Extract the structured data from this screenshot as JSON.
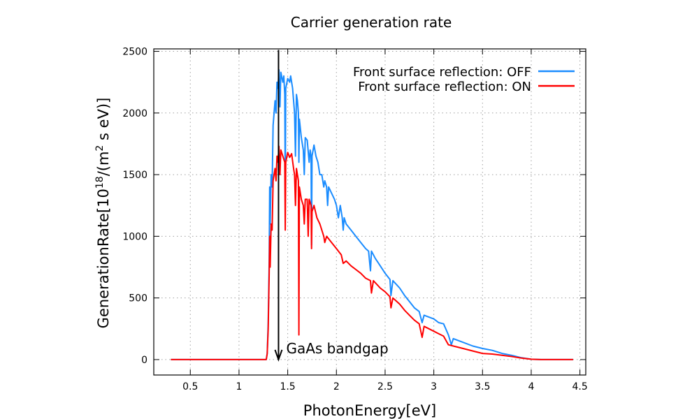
{
  "chart_data": {
    "type": "line",
    "title": "Carrier generation rate",
    "xlabel": "PhotonEnergy[eV]",
    "ylabel_parts": [
      "GenerationRate[10",
      "18",
      "/(m",
      "2",
      " s eV)]"
    ],
    "xlim": [
      0.125,
      4.56
    ],
    "ylim": [
      -125,
      2520
    ],
    "xticks": [
      0.5,
      1,
      1.5,
      2,
      2.5,
      3,
      3.5,
      4,
      4.5
    ],
    "xtick_labels": [
      "0.5",
      "1",
      "1.5",
      "2",
      "2.5",
      "3",
      "3.5",
      "4",
      "4.5"
    ],
    "yticks": [
      0,
      500,
      1000,
      1500,
      2000,
      2500
    ],
    "ytick_labels": [
      "0",
      "500",
      "1000",
      "1500",
      "2000",
      "2500"
    ],
    "grid": true,
    "legend_position": "top-right",
    "annotation": {
      "text": "GaAs bandgap",
      "x": 1.42,
      "arrow_from_y": 2500,
      "arrow_to_y": 0
    },
    "series": [
      {
        "name": "Front surface reflection: OFF",
        "color": "#1a8cff",
        "points": [
          [
            0.3,
            0
          ],
          [
            1.28,
            0
          ],
          [
            1.29,
            50
          ],
          [
            1.3,
            300
          ],
          [
            1.31,
            800
          ],
          [
            1.315,
            1400
          ],
          [
            1.32,
            1100
          ],
          [
            1.33,
            1500
          ],
          [
            1.34,
            1400
          ],
          [
            1.35,
            1900
          ],
          [
            1.37,
            2100
          ],
          [
            1.38,
            2000
          ],
          [
            1.39,
            2250
          ],
          [
            1.4,
            2200
          ],
          [
            1.41,
            2350
          ],
          [
            1.42,
            2050
          ],
          [
            1.43,
            2330
          ],
          [
            1.45,
            2250
          ],
          [
            1.46,
            2300
          ],
          [
            1.47,
            2150
          ],
          [
            1.475,
            1350
          ],
          [
            1.48,
            2200
          ],
          [
            1.5,
            2280
          ],
          [
            1.52,
            2250
          ],
          [
            1.53,
            2300
          ],
          [
            1.55,
            2200
          ],
          [
            1.56,
            2100
          ],
          [
            1.57,
            2000
          ],
          [
            1.58,
            1650
          ],
          [
            1.59,
            2150
          ],
          [
            1.6,
            2100
          ],
          [
            1.61,
            2000
          ],
          [
            1.615,
            1600
          ],
          [
            1.62,
            1950
          ],
          [
            1.64,
            1800
          ],
          [
            1.66,
            1700
          ],
          [
            1.67,
            1500
          ],
          [
            1.68,
            1800
          ],
          [
            1.7,
            1780
          ],
          [
            1.72,
            1600
          ],
          [
            1.73,
            1700
          ],
          [
            1.74,
            1650
          ],
          [
            1.745,
            930
          ],
          [
            1.75,
            1650
          ],
          [
            1.77,
            1740
          ],
          [
            1.79,
            1650
          ],
          [
            1.81,
            1600
          ],
          [
            1.83,
            1500
          ],
          [
            1.85,
            1500
          ],
          [
            1.87,
            1400
          ],
          [
            1.88,
            1450
          ],
          [
            1.9,
            1400
          ],
          [
            1.91,
            1250
          ],
          [
            1.92,
            1400
          ],
          [
            1.95,
            1350
          ],
          [
            1.98,
            1300
          ],
          [
            2.0,
            1250
          ],
          [
            2.02,
            1150
          ],
          [
            2.04,
            1250
          ],
          [
            2.06,
            1150
          ],
          [
            2.07,
            1050
          ],
          [
            2.08,
            1150
          ],
          [
            2.1,
            1100
          ],
          [
            2.15,
            1050
          ],
          [
            2.2,
            1000
          ],
          [
            2.25,
            950
          ],
          [
            2.3,
            900
          ],
          [
            2.33,
            880
          ],
          [
            2.35,
            720
          ],
          [
            2.36,
            880
          ],
          [
            2.4,
            820
          ],
          [
            2.45,
            760
          ],
          [
            2.5,
            700
          ],
          [
            2.55,
            650
          ],
          [
            2.56,
            520
          ],
          [
            2.58,
            640
          ],
          [
            2.65,
            580
          ],
          [
            2.7,
            520
          ],
          [
            2.75,
            470
          ],
          [
            2.8,
            420
          ],
          [
            2.85,
            390
          ],
          [
            2.88,
            300
          ],
          [
            2.9,
            360
          ],
          [
            3.0,
            330
          ],
          [
            3.05,
            300
          ],
          [
            3.1,
            290
          ],
          [
            3.15,
            200
          ],
          [
            3.18,
            120
          ],
          [
            3.2,
            170
          ],
          [
            3.3,
            140
          ],
          [
            3.4,
            110
          ],
          [
            3.5,
            90
          ],
          [
            3.6,
            75
          ],
          [
            3.7,
            50
          ],
          [
            3.8,
            35
          ],
          [
            3.9,
            15
          ],
          [
            4.0,
            3
          ],
          [
            4.1,
            0
          ],
          [
            4.43,
            0
          ]
        ]
      },
      {
        "name": "Front surface reflection: ON",
        "color": "#ff0000",
        "points": [
          [
            0.3,
            0
          ],
          [
            1.28,
            0
          ],
          [
            1.29,
            50
          ],
          [
            1.3,
            250
          ],
          [
            1.31,
            700
          ],
          [
            1.315,
            1000
          ],
          [
            1.32,
            750
          ],
          [
            1.33,
            1100
          ],
          [
            1.34,
            1050
          ],
          [
            1.35,
            1450
          ],
          [
            1.37,
            1550
          ],
          [
            1.38,
            1450
          ],
          [
            1.39,
            1650
          ],
          [
            1.4,
            1600
          ],
          [
            1.41,
            1730
          ],
          [
            1.42,
            1500
          ],
          [
            1.43,
            1700
          ],
          [
            1.45,
            1650
          ],
          [
            1.47,
            1600
          ],
          [
            1.475,
            1050
          ],
          [
            1.48,
            1600
          ],
          [
            1.5,
            1680
          ],
          [
            1.52,
            1640
          ],
          [
            1.54,
            1670
          ],
          [
            1.56,
            1550
          ],
          [
            1.57,
            1500
          ],
          [
            1.58,
            1250
          ],
          [
            1.59,
            1550
          ],
          [
            1.61,
            1450
          ],
          [
            1.615,
            200
          ],
          [
            1.62,
            1400
          ],
          [
            1.64,
            1300
          ],
          [
            1.66,
            1250
          ],
          [
            1.67,
            1100
          ],
          [
            1.68,
            1300
          ],
          [
            1.7,
            1300
          ],
          [
            1.71,
            1000
          ],
          [
            1.72,
            1300
          ],
          [
            1.74,
            1250
          ],
          [
            1.745,
            900
          ],
          [
            1.75,
            1200
          ],
          [
            1.77,
            1250
          ],
          [
            1.8,
            1150
          ],
          [
            1.83,
            1100
          ],
          [
            1.85,
            1050
          ],
          [
            1.87,
            1000
          ],
          [
            1.88,
            950
          ],
          [
            1.9,
            1000
          ],
          [
            1.95,
            950
          ],
          [
            2.0,
            900
          ],
          [
            2.05,
            850
          ],
          [
            2.07,
            780
          ],
          [
            2.1,
            800
          ],
          [
            2.15,
            760
          ],
          [
            2.2,
            730
          ],
          [
            2.25,
            700
          ],
          [
            2.3,
            660
          ],
          [
            2.35,
            640
          ],
          [
            2.36,
            540
          ],
          [
            2.38,
            640
          ],
          [
            2.45,
            580
          ],
          [
            2.5,
            550
          ],
          [
            2.55,
            510
          ],
          [
            2.56,
            420
          ],
          [
            2.58,
            500
          ],
          [
            2.65,
            450
          ],
          [
            2.7,
            400
          ],
          [
            2.75,
            360
          ],
          [
            2.8,
            320
          ],
          [
            2.85,
            290
          ],
          [
            2.88,
            180
          ],
          [
            2.9,
            270
          ],
          [
            3.0,
            230
          ],
          [
            3.05,
            210
          ],
          [
            3.1,
            190
          ],
          [
            3.15,
            120
          ],
          [
            3.2,
            110
          ],
          [
            3.3,
            90
          ],
          [
            3.4,
            70
          ],
          [
            3.5,
            50
          ],
          [
            3.6,
            45
          ],
          [
            3.7,
            35
          ],
          [
            3.8,
            25
          ],
          [
            3.9,
            12
          ],
          [
            4.0,
            3
          ],
          [
            4.1,
            0
          ],
          [
            4.43,
            0
          ]
        ]
      }
    ]
  }
}
